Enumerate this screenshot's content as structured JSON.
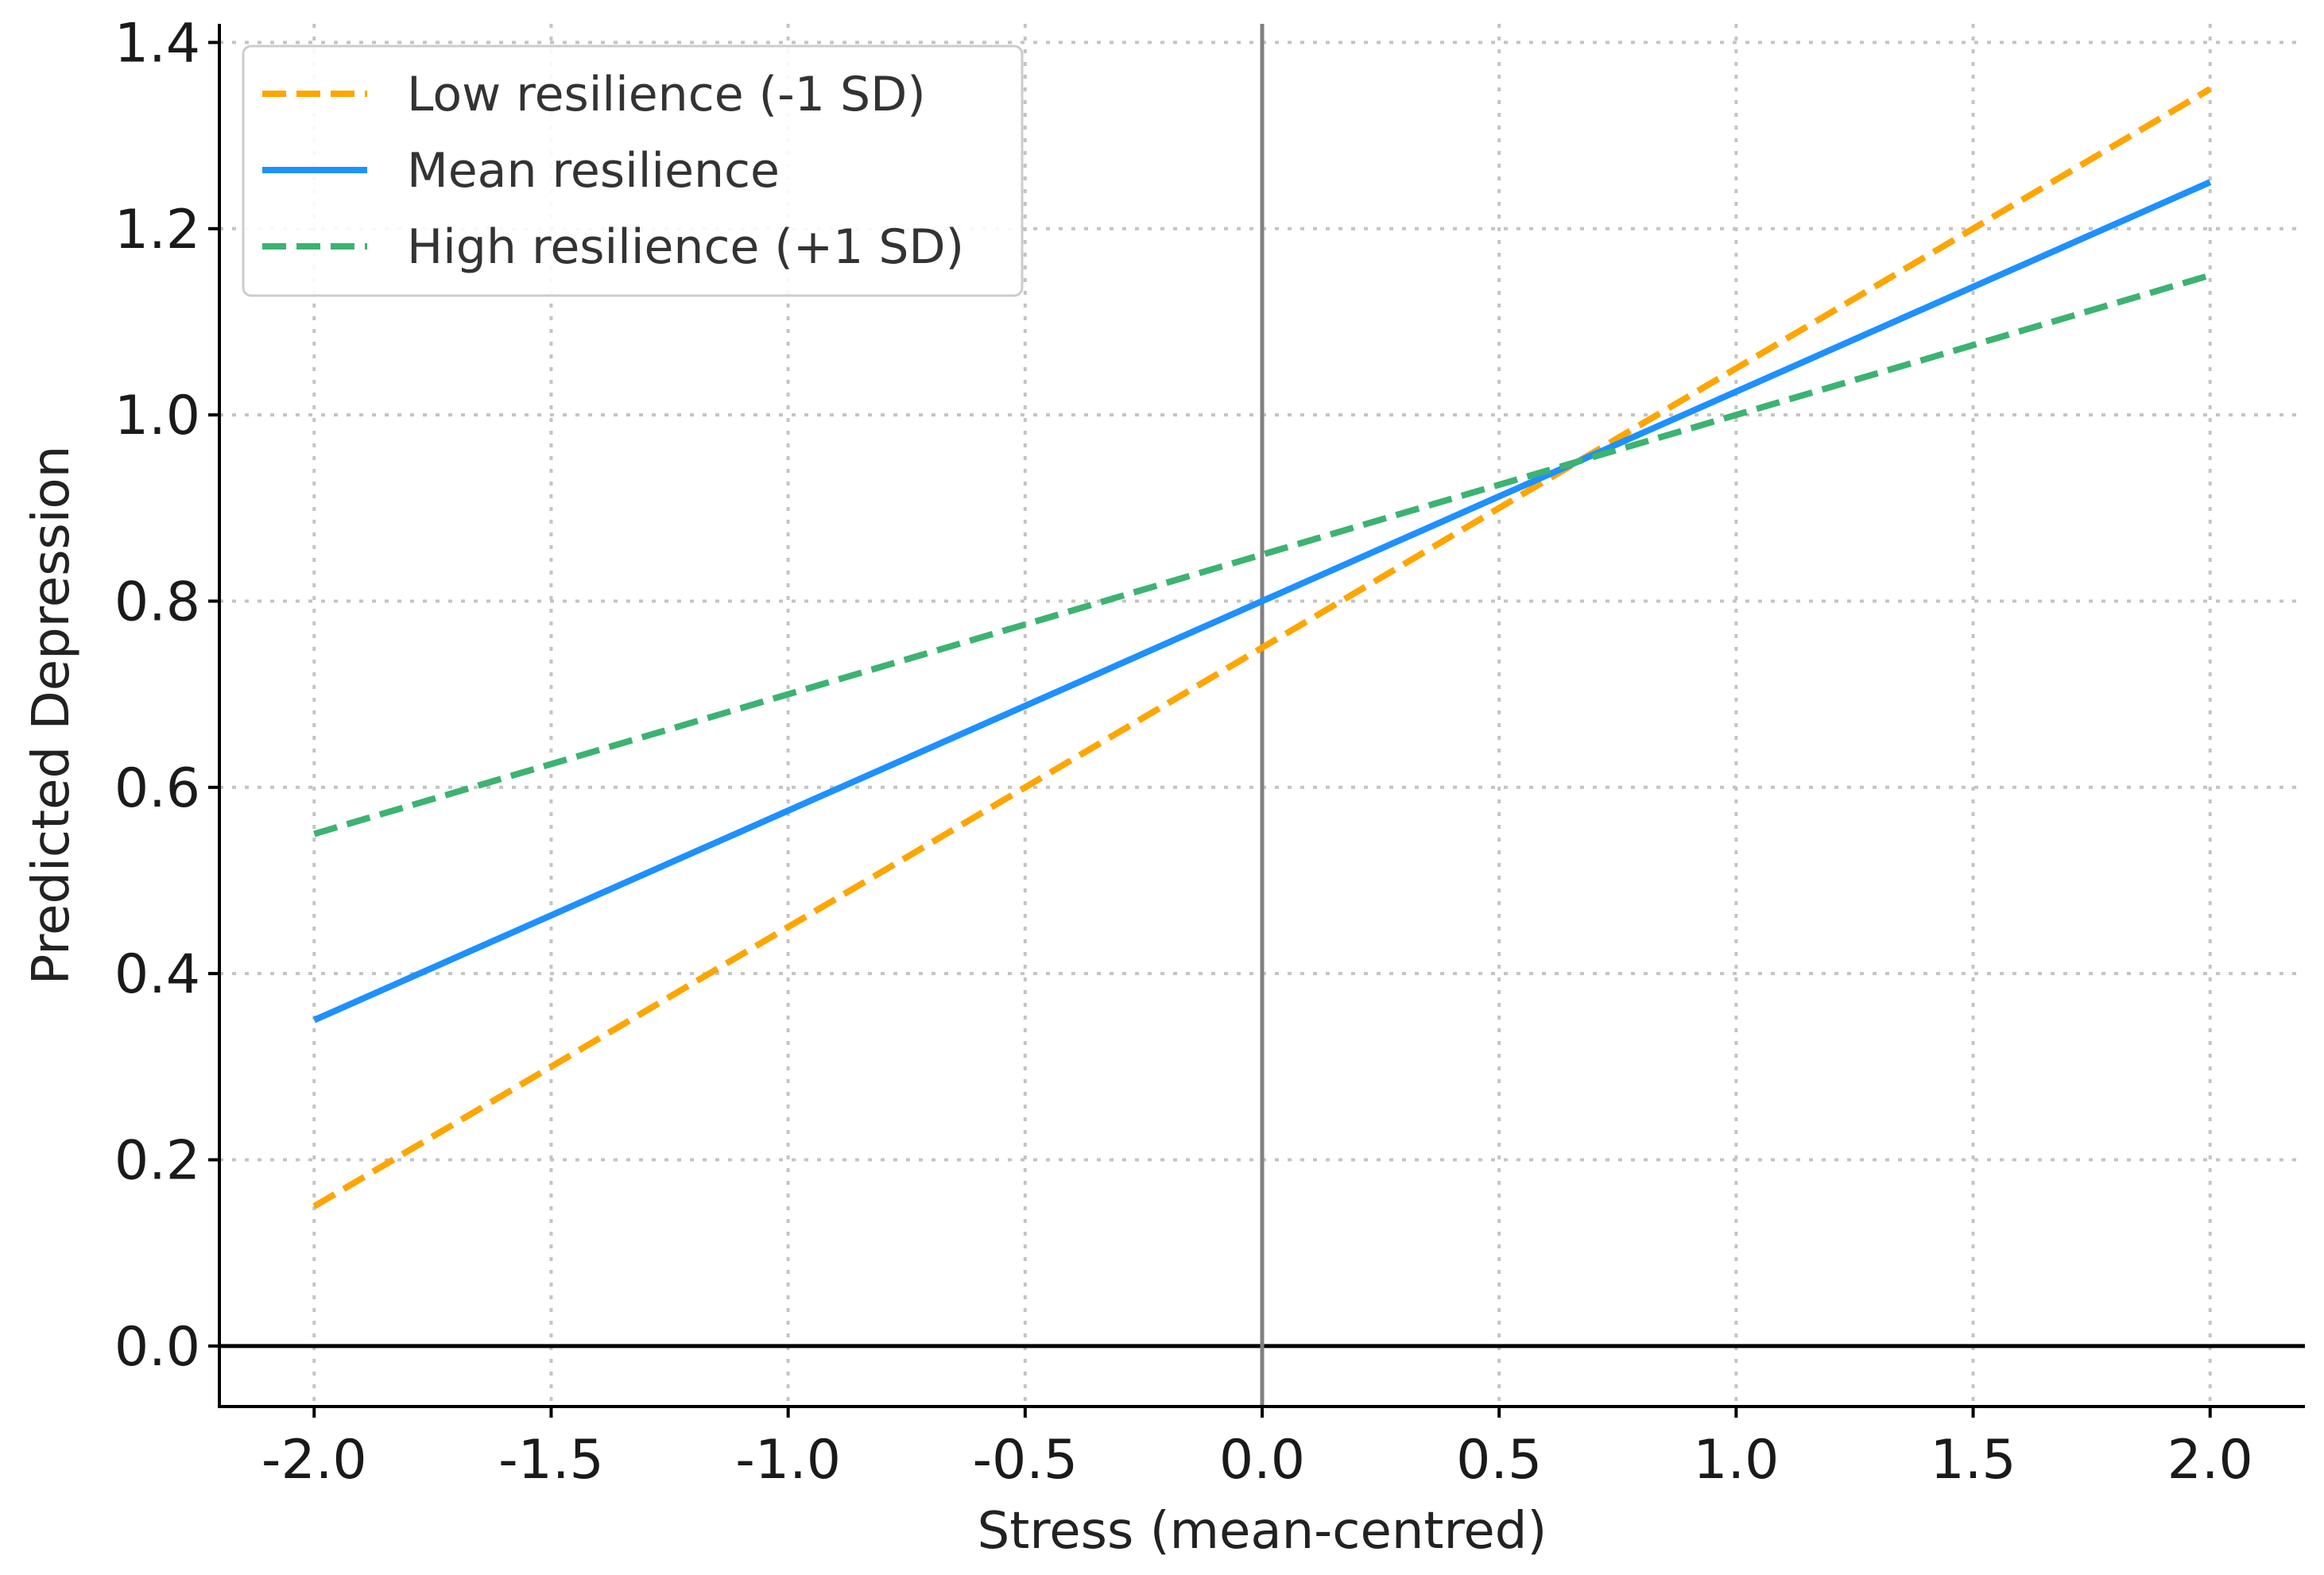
{
  "chart_data": {
    "type": "line",
    "title": "",
    "xlabel": "Stress (mean-centred)",
    "ylabel": "Predicted Depression",
    "xlim": [
      -2.2,
      2.2
    ],
    "ylim": [
      -0.065,
      1.42
    ],
    "grid": true,
    "legend_position": "top-left",
    "x_ticks": [
      -2.0,
      -1.5,
      -1.0,
      -0.5,
      0.0,
      0.5,
      1.0,
      1.5,
      2.0
    ],
    "x_tick_labels": [
      "-2.0",
      "-1.5",
      "-1.0",
      "-0.5",
      "0.0",
      "0.5",
      "1.0",
      "1.5",
      "2.0"
    ],
    "y_ticks": [
      0.0,
      0.2,
      0.4,
      0.6,
      0.8,
      1.0,
      1.2,
      1.4
    ],
    "y_tick_labels": [
      "0.0",
      "0.2",
      "0.4",
      "0.6",
      "0.8",
      "1.0",
      "1.2",
      "1.4"
    ],
    "reference_lines": [
      {
        "orientation": "horizontal",
        "value": 0.0,
        "color": "#000000"
      },
      {
        "orientation": "vertical",
        "value": 0.0,
        "color": "#808080"
      }
    ],
    "series": [
      {
        "name": "Low resilience (-1 SD)",
        "color": "#FFA500",
        "style": "dashed",
        "x": [
          -2.0,
          2.0
        ],
        "y": [
          0.15,
          1.35
        ]
      },
      {
        "name": "Mean resilience",
        "color": "#1E90FF",
        "style": "solid",
        "x": [
          -2.0,
          2.0
        ],
        "y": [
          0.35,
          1.25
        ]
      },
      {
        "name": "High resilience (+1 SD)",
        "color": "#3CB371",
        "style": "dashed",
        "x": [
          -2.0,
          2.0
        ],
        "y": [
          0.55,
          1.15
        ]
      }
    ]
  }
}
